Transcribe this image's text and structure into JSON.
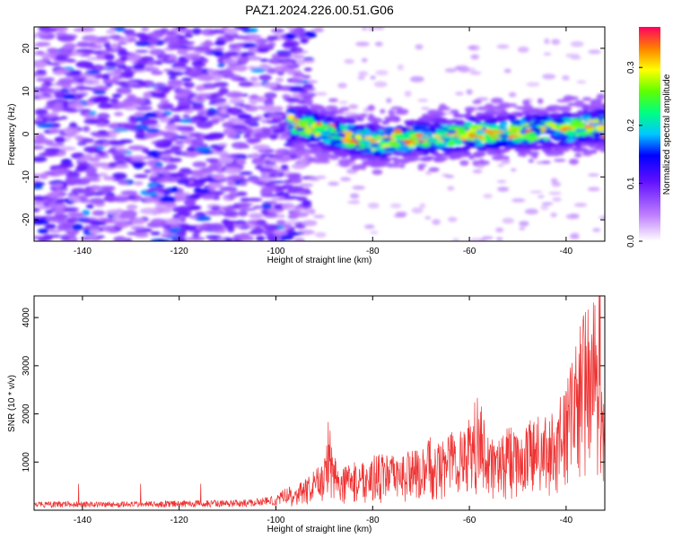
{
  "figure": {
    "title": "PAZ1.2024.226.00.51.G06"
  },
  "chart_data": [
    {
      "type": "heatmap",
      "xlabel": "Height of straight line (km)",
      "ylabel": "Frequency (Hz)",
      "xlim": [
        -150,
        -32
      ],
      "ylim": [
        -25,
        25
      ],
      "xticks": [
        -140,
        -120,
        -100,
        -80,
        -60,
        -40
      ],
      "yticks": [
        20,
        10,
        0,
        -10,
        -20
      ],
      "colorbar": {
        "label": "Normalized spectral amplitude",
        "range": [
          0,
          0.37
        ],
        "ticks": [
          0.0,
          0.1,
          0.2,
          0.3
        ]
      },
      "pattern": {
        "noise_region_x": [
          -150,
          -97
        ],
        "noise_level": 0.06,
        "signal_band_center_hz": [
          {
            "x": -95,
            "y": 2
          },
          {
            "x": -80,
            "y": -2
          },
          {
            "x": -60,
            "y": 0
          },
          {
            "x": -40,
            "y": 1
          },
          {
            "x": -32,
            "y": 2
          }
        ],
        "signal_band_width_hz": 6,
        "signal_peak_amplitude": 0.37
      }
    },
    {
      "type": "line",
      "xlabel": "Height of straight line (km)",
      "ylabel": "SNR (10 * v/v)",
      "xlim": [
        -150,
        -32
      ],
      "ylim": [
        0,
        4450
      ],
      "xticks": [
        -140,
        -120,
        -100,
        -80,
        -60,
        -40
      ],
      "yticks": [
        1000,
        2000,
        3000,
        4000
      ],
      "color": "#ee3333",
      "x": [
        -150,
        -140,
        -130,
        -120,
        -110,
        -105,
        -100,
        -96,
        -93,
        -90,
        -89,
        -87,
        -85,
        -83,
        -80,
        -77,
        -75,
        -72,
        -70,
        -68,
        -66,
        -64,
        -62,
        -60,
        -58,
        -56,
        -54,
        -52,
        -50,
        -48,
        -46,
        -44,
        -42,
        -40,
        -38,
        -36,
        -35,
        -34,
        -33,
        -32
      ],
      "y": [
        120,
        130,
        125,
        140,
        145,
        160,
        220,
        420,
        600,
        900,
        1700,
        700,
        800,
        850,
        950,
        1000,
        900,
        1100,
        1000,
        1300,
        1200,
        1400,
        1500,
        1600,
        2100,
        1300,
        1200,
        1500,
        1300,
        1500,
        1700,
        1600,
        1800,
        2200,
        2900,
        3700,
        3300,
        3800,
        4400,
        1400
      ]
    }
  ]
}
